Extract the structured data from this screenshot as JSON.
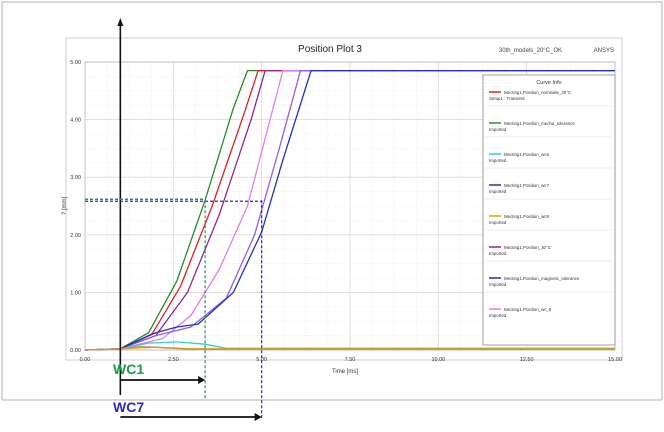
{
  "chart_data": {
    "type": "line",
    "title": "Position Plot 3",
    "top_right_label": "30th_models_20°C_OK",
    "top_right_label2": "ANSYS",
    "xlabel": "Time [ms]",
    "ylabel": "? [mm]",
    "xlim": [
      0,
      15
    ],
    "ylim": [
      0,
      5
    ],
    "x_ticks": [
      "0.00",
      "2.50",
      "5.00",
      "7.50",
      "10.00",
      "12.50",
      "15.00"
    ],
    "y_ticks": [
      "0.00",
      "1.00",
      "2.00",
      "3.00",
      "4.00",
      "5.00"
    ],
    "grid": true,
    "legend": {
      "title": "Curve Info",
      "placement": "right",
      "entries": [
        {
          "line1": "Mecting1.Position_nominale_20°C",
          "line2": "Setup1 : Transient",
          "color": "#e02020"
        },
        {
          "line1": "Mecting1.Position_mecha_tolerance",
          "line2": "Imported",
          "color": "#2a8a2a"
        },
        {
          "line1": "Mecting1.Position_wc6",
          "line2": "Imported",
          "color": "#30d0d0"
        },
        {
          "line1": "Mecting1.Position_wc7",
          "line2": "Imported",
          "color": "#2030c0"
        },
        {
          "line1": "Mecting1.Position_wc8",
          "line2": "Imported",
          "color": "#e0a000"
        },
        {
          "line1": "Mecting1.Position_30°C",
          "line2": "Imported",
          "color": "#8a2a8a"
        },
        {
          "line1": "Mecting1.Position_magnetic_tolerance",
          "line2": "Imported",
          "color": "#2a2aa0"
        },
        {
          "line1": "Mecting1.Position_wc_8",
          "line2": "Imported",
          "color": "#e080e0"
        }
      ]
    },
    "series": [
      {
        "color": "#2a8a2a",
        "x": [
          0,
          1.0,
          1.8,
          2.6,
          3.4,
          4.2,
          4.6,
          15.0
        ],
        "y": [
          0,
          0.02,
          0.3,
          1.2,
          2.6,
          4.2,
          4.85,
          4.85
        ]
      },
      {
        "color": "#e02020",
        "x": [
          0,
          1.0,
          1.9,
          2.7,
          3.6,
          4.5,
          4.9,
          15.0
        ],
        "y": [
          0,
          0.02,
          0.28,
          1.1,
          2.5,
          4.1,
          4.85,
          4.85
        ]
      },
      {
        "color": "#8a2a8a",
        "x": [
          0,
          1.0,
          2.0,
          2.9,
          3.8,
          4.7,
          5.1,
          15.0
        ],
        "y": [
          0,
          0.02,
          0.25,
          1.0,
          2.35,
          4.0,
          4.85,
          4.85
        ]
      },
      {
        "color": "#e080e0",
        "x": [
          0,
          1.0,
          2.2,
          3.0,
          3.8,
          4.6,
          5.6,
          15.0
        ],
        "y": [
          0,
          0.02,
          0.2,
          0.6,
          1.4,
          2.5,
          4.85,
          4.85
        ]
      },
      {
        "color": "#9060e0",
        "x": [
          0,
          1.0,
          2.0,
          3.0,
          4.0,
          4.8,
          5.5,
          6.1,
          15.0
        ],
        "y": [
          0,
          0.02,
          0.25,
          0.4,
          0.9,
          2.0,
          3.5,
          4.85,
          4.85
        ]
      },
      {
        "color": "#2030c0",
        "x": [
          0,
          1.0,
          2.0,
          2.6,
          3.2,
          4.2,
          5.0,
          5.6,
          6.4,
          15.0
        ],
        "y": [
          0,
          0.02,
          0.3,
          0.4,
          0.45,
          1.0,
          2.05,
          3.3,
          4.85,
          4.85
        ]
      },
      {
        "color": "#30d0d0",
        "x": [
          0,
          1.0,
          1.8,
          2.6,
          3.4,
          4.0,
          15.0
        ],
        "y": [
          0,
          0.02,
          0.12,
          0.14,
          0.1,
          0.03,
          0.03
        ]
      },
      {
        "color": "#e0a000",
        "x": [
          0,
          1.0,
          2.0,
          3.0,
          15.0
        ],
        "y": [
          0,
          0.02,
          0.05,
          0.02,
          0.02
        ]
      },
      {
        "color": "#d09050",
        "x": [
          0,
          1.0,
          1.6,
          2.2,
          3.0,
          15.0
        ],
        "y": [
          0,
          0.02,
          0.06,
          0.04,
          0.01,
          0.01
        ]
      }
    ],
    "reference": {
      "y_level": 2.6,
      "wc1_time": 3.4,
      "wc7_time": 5.0,
      "axis_origin_time": 1.0,
      "wc1_label": "WC1",
      "wc7_label": "WC7",
      "wc1_color": "#1f9a4a",
      "wc7_color": "#2a2ab8"
    }
  }
}
